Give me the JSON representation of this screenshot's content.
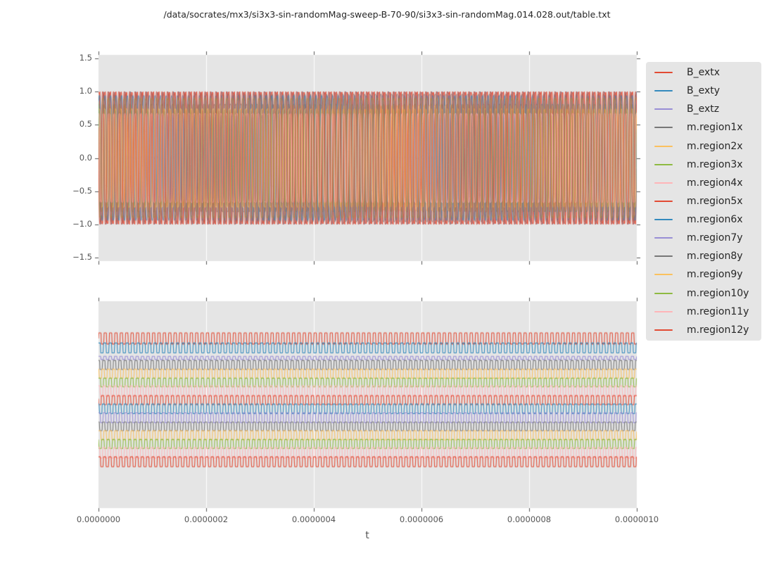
{
  "figure": {
    "title": "/data/socrates/mx3/si3x3-sin-randomMag-sweep-B-70-90/si3x3-sin-randomMag.014.028.out/table.txt",
    "xlabel": "t",
    "background": "#ffffff",
    "axes_background": "#e5e5e5",
    "grid_color": "#ffffff",
    "tick_color": "#555555",
    "tick_label_color": "#555555",
    "text_color": "#262626"
  },
  "legend": {
    "position": "right-outside",
    "entries": [
      {
        "label": "B_extx",
        "color": "#e24a33"
      },
      {
        "label": "B_exty",
        "color": "#348abd"
      },
      {
        "label": "B_extz",
        "color": "#988ed5"
      },
      {
        "label": "m.region1x",
        "color": "#777777"
      },
      {
        "label": "m.region2x",
        "color": "#fbc15e"
      },
      {
        "label": "m.region3x",
        "color": "#8eba42"
      },
      {
        "label": "m.region4x",
        "color": "#ffb5b8"
      },
      {
        "label": "m.region5x",
        "color": "#e24a33"
      },
      {
        "label": "m.region6x",
        "color": "#348abd"
      },
      {
        "label": "m.region7y",
        "color": "#988ed5"
      },
      {
        "label": "m.region8y",
        "color": "#777777"
      },
      {
        "label": "m.region9y",
        "color": "#fbc15e"
      },
      {
        "label": "m.region10y",
        "color": "#8eba42"
      },
      {
        "label": "m.region11y",
        "color": "#ffb5b8"
      },
      {
        "label": "m.region12y",
        "color": "#e24a33"
      }
    ]
  },
  "chart_data": [
    {
      "type": "line",
      "panel": "top",
      "description": "All 15 table columns plotted vs t; ~100 oscillation periods over 0..1e-6 s form a dense band between -1 and 1",
      "x": {
        "min": 0,
        "max": 1e-06,
        "tick_labels": [
          "0.0000000",
          "0.0000002",
          "0.0000004",
          "0.0000006",
          "0.0000008",
          "0.0000010"
        ]
      },
      "y": {
        "min": -1.55,
        "max": 1.55,
        "tick_values": [
          1.5,
          1.0,
          0.5,
          0.0,
          -0.5,
          -1.0,
          -1.5
        ],
        "tick_labels": [
          "1.5",
          "1.0",
          "0.5",
          "0.0",
          "−0.5",
          "−1.0",
          "−1.5"
        ]
      },
      "grid": "vertical-only",
      "series": [
        {
          "name": "B_extx",
          "color": "#e24a33",
          "waveform": "sine",
          "amplitude": 1.0,
          "cycles": 100,
          "phase": 0.0,
          "squareness": 1
        },
        {
          "name": "B_exty",
          "color": "#348abd",
          "waveform": "sine",
          "amplitude": 1.0,
          "cycles": 100,
          "phase": 2.2,
          "squareness": 1
        },
        {
          "name": "B_extz",
          "color": "#988ed5",
          "waveform": "sine",
          "amplitude": 0.04,
          "cycles": 100,
          "phase": 0.8,
          "squareness": 1
        },
        {
          "name": "m.region1x",
          "color": "#777777",
          "waveform": "square",
          "amplitude": 0.96,
          "cycles": 99,
          "phase": 2.1,
          "squareness": 3
        },
        {
          "name": "m.region2x",
          "color": "#fbc15e",
          "waveform": "square",
          "amplitude": 0.79,
          "cycles": 101,
          "phase": 0.7,
          "squareness": 3
        },
        {
          "name": "m.region3x",
          "color": "#8eba42",
          "waveform": "square",
          "amplitude": 0.71,
          "cycles": 100,
          "phase": 1.3,
          "squareness": 3
        },
        {
          "name": "m.region4x",
          "color": "#ffb5b8",
          "waveform": "square",
          "amplitude": 0.66,
          "cycles": 98,
          "phase": 2.8,
          "squareness": 3
        },
        {
          "name": "m.region5x",
          "color": "#e24a33",
          "waveform": "square",
          "amplitude": 0.99,
          "cycles": 100,
          "phase": 1.0,
          "squareness": 2
        },
        {
          "name": "m.region6x",
          "color": "#348abd",
          "waveform": "square",
          "amplitude": 0.94,
          "cycles": 97,
          "phase": 0.4,
          "squareness": 2
        },
        {
          "name": "m.region7y",
          "color": "#988ed5",
          "waveform": "square",
          "amplitude": 0.87,
          "cycles": 100,
          "phase": 2.0,
          "squareness": 3
        },
        {
          "name": "m.region8y",
          "color": "#777777",
          "waveform": "square",
          "amplitude": 0.81,
          "cycles": 102,
          "phase": 1.5,
          "squareness": 3
        },
        {
          "name": "m.region9y",
          "color": "#fbc15e",
          "waveform": "square",
          "amplitude": 0.74,
          "cycles": 99,
          "phase": 0.9,
          "squareness": 3
        },
        {
          "name": "m.region10y",
          "color": "#8eba42",
          "waveform": "square",
          "amplitude": 0.9,
          "cycles": 100,
          "phase": 2.5,
          "squareness": 3
        },
        {
          "name": "m.region11y",
          "color": "#ffb5b8",
          "waveform": "square",
          "amplitude": 0.67,
          "cycles": 101,
          "phase": 1.7,
          "squareness": 3
        },
        {
          "name": "m.region12y",
          "color": "#e24a33",
          "waveform": "square",
          "amplitude": 1.0,
          "cycles": 100,
          "phase": 2.9,
          "squareness": 2
        }
      ]
    },
    {
      "type": "line",
      "panel": "bottom",
      "description": "Same 15 columns shown as vertically offset square-wave strips, no y tick labels; center/half_amplitude are fractions of panel height from its top",
      "x": {
        "min": 0,
        "max": 1e-06,
        "tick_labels": [
          "0.0000000",
          "0.0000002",
          "0.0000004",
          "0.0000006",
          "0.0000008",
          "0.0000010"
        ]
      },
      "y": {
        "tick_labels": []
      },
      "grid": "vertical-only",
      "series": [
        {
          "name": "B_extx",
          "color": "#e24a33",
          "center": 0.18,
          "half_amplitude": 0.027,
          "cycles": 100,
          "phase": 0.0,
          "squareness": 8
        },
        {
          "name": "B_exty",
          "color": "#348abd",
          "center": 0.226,
          "half_amplitude": 0.024,
          "cycles": 96,
          "phase": 0.9,
          "squareness": 8
        },
        {
          "name": "B_extz",
          "color": "#988ed5",
          "center": 0.274,
          "half_amplitude": 0.008,
          "cycles": 100,
          "phase": 0.4,
          "squareness": 8
        },
        {
          "name": "m.region1x",
          "color": "#777777",
          "center": 0.308,
          "half_amplitude": 0.022,
          "cycles": 100,
          "phase": 1.7,
          "squareness": 8
        },
        {
          "name": "m.region2x",
          "color": "#fbc15e",
          "center": 0.35,
          "half_amplitude": 0.022,
          "cycles": 100,
          "phase": 2.5,
          "squareness": 8
        },
        {
          "name": "m.region3x",
          "color": "#8eba42",
          "center": 0.393,
          "half_amplitude": 0.021,
          "cycles": 99,
          "phase": 0.6,
          "squareness": 8
        },
        {
          "name": "m.region4x",
          "color": "#ffb5b8",
          "center": 0.435,
          "half_amplitude": 0.026,
          "cycles": 100,
          "phase": 1.2,
          "squareness": 8
        },
        {
          "name": "m.region5x",
          "color": "#e24a33",
          "center": 0.478,
          "half_amplitude": 0.022,
          "cycles": 100,
          "phase": 3.1,
          "squareness": 8
        },
        {
          "name": "m.region6x",
          "color": "#348abd",
          "center": 0.52,
          "half_amplitude": 0.023,
          "cycles": 98,
          "phase": 2.2,
          "squareness": 8
        },
        {
          "name": "m.region7y",
          "color": "#988ed5",
          "center": 0.563,
          "half_amplitude": 0.024,
          "cycles": 100,
          "phase": 1.0,
          "squareness": 8
        },
        {
          "name": "m.region8y",
          "color": "#777777",
          "center": 0.605,
          "half_amplitude": 0.021,
          "cycles": 100,
          "phase": 1.9,
          "squareness": 8
        },
        {
          "name": "m.region9y",
          "color": "#fbc15e",
          "center": 0.648,
          "half_amplitude": 0.022,
          "cycles": 99,
          "phase": 0.3,
          "squareness": 8
        },
        {
          "name": "m.region10y",
          "color": "#8eba42",
          "center": 0.69,
          "half_amplitude": 0.022,
          "cycles": 100,
          "phase": 2.8,
          "squareness": 8
        },
        {
          "name": "m.region11y",
          "color": "#ffb5b8",
          "center": 0.733,
          "half_amplitude": 0.026,
          "cycles": 100,
          "phase": 1.5,
          "squareness": 8
        },
        {
          "name": "m.region12y",
          "color": "#e24a33",
          "center": 0.776,
          "half_amplitude": 0.024,
          "cycles": 100,
          "phase": 0.7,
          "squareness": 8
        }
      ]
    }
  ]
}
